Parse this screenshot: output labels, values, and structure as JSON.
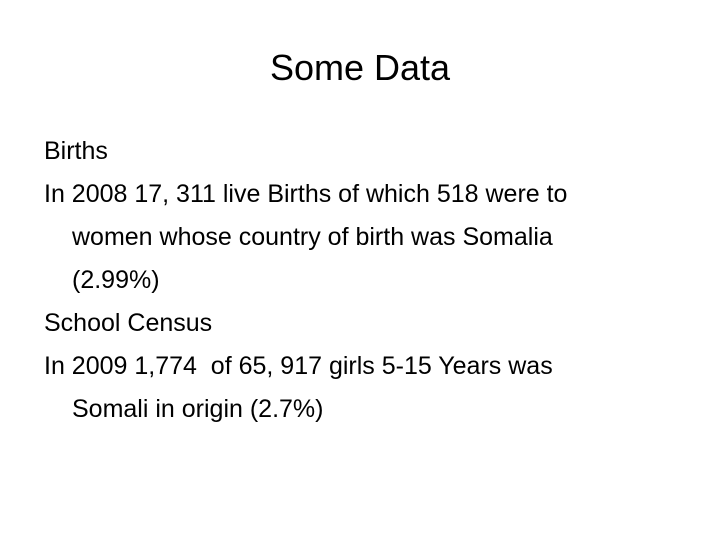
{
  "title": "Some Data",
  "paragraphs": [
    {
      "lines": [
        "Births"
      ]
    },
    {
      "lines": [
        "In 2008 17, 311 live Births of which 518 were to",
        "women whose country of birth was Somalia",
        "(2.99%)"
      ]
    },
    {
      "lines": [
        "School Census"
      ]
    },
    {
      "lines": [
        "In 2009 1,774  of 65, 917 girls 5-15 Years was",
        "Somali in origin (2.7%)"
      ]
    }
  ]
}
